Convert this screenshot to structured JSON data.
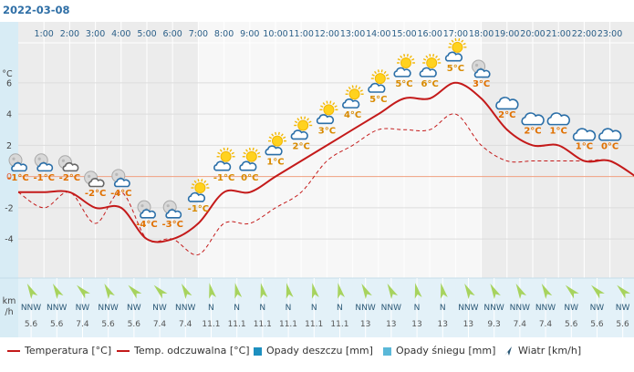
{
  "date": "2022-03-08",
  "chart_data": {
    "type": "line",
    "hours": [
      "1:00",
      "2:00",
      "3:00",
      "4:00",
      "5:00",
      "6:00",
      "7:00",
      "8:00",
      "9:00",
      "10:00",
      "11:00",
      "12:00",
      "13:00",
      "14:00",
      "15:00",
      "16:00",
      "17:00",
      "18:00",
      "19:00",
      "20:00",
      "21:00",
      "22:00",
      "23:00"
    ],
    "x": [
      0,
      1,
      2,
      3,
      4,
      5,
      6,
      7,
      8,
      9,
      10,
      11,
      12,
      13,
      14,
      15,
      16,
      17,
      18,
      19,
      20,
      21,
      22,
      23,
      24
    ],
    "temperature": [
      -1,
      -1,
      -1,
      -2,
      -2,
      -4,
      -4,
      -3,
      -1,
      -1,
      0,
      1,
      2,
      3,
      4,
      5,
      5,
      6,
      5,
      3,
      2,
      2,
      1,
      1,
      0
    ],
    "feels_like": [
      -1,
      -2,
      -1,
      -3,
      -1,
      -4,
      -4,
      -5,
      -3,
      -3,
      -2,
      -1,
      1,
      2,
      3,
      3,
      3,
      4,
      2,
      1,
      1,
      1,
      1,
      1,
      0
    ],
    "temp_labels": [
      "-1°C",
      "-1°C",
      "-2°C",
      "-2°C",
      "-4°C",
      "-4°C",
      "-3°C",
      "-1°C",
      "-1°C",
      "0°C",
      "1°C",
      "2°C",
      "3°C",
      "4°C",
      "5°C",
      "5°C",
      "6°C",
      "5°C",
      "3°C",
      "2°C",
      "2°C",
      "1°C",
      "1°C",
      "0°C"
    ],
    "weather_icons": [
      "night-partly-cloudy-icon",
      "night-partly-cloudy-icon",
      "night-cloudy-icon",
      "night-cloudy-icon",
      "night-partly-cloudy-icon",
      "night-partly-cloudy-icon",
      "night-partly-cloudy-icon",
      "sun-cloud-icon",
      "sun-cloud-icon",
      "sun-cloud-icon",
      "sun-cloud-icon",
      "sun-cloud-icon",
      "sun-cloud-icon",
      "sun-cloud-icon",
      "sun-cloud-icon",
      "sun-cloud-icon",
      "sun-cloud-icon",
      "sun-cloud-icon",
      "night-partly-cloudy-icon",
      "cloud-icon",
      "cloud-icon",
      "cloud-icon",
      "cloud-icon",
      "cloud-icon"
    ],
    "wind_dir": [
      "NNW",
      "NNW",
      "NW",
      "NNW",
      "NW",
      "NW",
      "NNW",
      "N",
      "N",
      "N",
      "N",
      "N",
      "N",
      "NNW",
      "NNW",
      "N",
      "N",
      "NNW",
      "NNW",
      "NNW",
      "NNW",
      "NW",
      "NW",
      "NW"
    ],
    "wind_speed": [
      "5.6",
      "5.6",
      "7.4",
      "5.6",
      "5.6",
      "7.4",
      "7.4",
      "11.1",
      "11.1",
      "11.1",
      "11.1",
      "11.1",
      "11.1",
      "13",
      "13",
      "13",
      "13",
      "13",
      "9.3",
      "7.4",
      "7.4",
      "5.6",
      "5.6",
      "5.6"
    ],
    "yaxis_unit": "°C",
    "yticks": [
      6,
      4,
      2,
      0,
      -2,
      -4
    ],
    "ylim": [
      -6.5,
      8.5
    ],
    "wind_unit_top": "km",
    "wind_unit_bottom": "/h",
    "grid": true,
    "legend_position": "bottom",
    "legend": {
      "temperature": "Temperatura [°C]",
      "feels_like": "Temp. odczuwalna [°C]",
      "rain": "Opady deszczu [mm]",
      "snow": "Opady śniegu [mm]",
      "wind": "Wiatr [km/h]"
    },
    "colors": {
      "temperature": "#c41a1a",
      "feels_like": "#c41a1a",
      "rain": "#1d8fbf",
      "snow": "#5ab8d8",
      "wind": "#2b5876",
      "night_band": "#ececec",
      "day_band": "#f7f7f7",
      "zero_line": "#f0a080",
      "label_night": "#e07000",
      "label_day": "#d88a00",
      "wind_panel": "#e3f1f8",
      "wind_arrow": "#a7d35e",
      "axis_band": "#d8ecf5"
    }
  }
}
